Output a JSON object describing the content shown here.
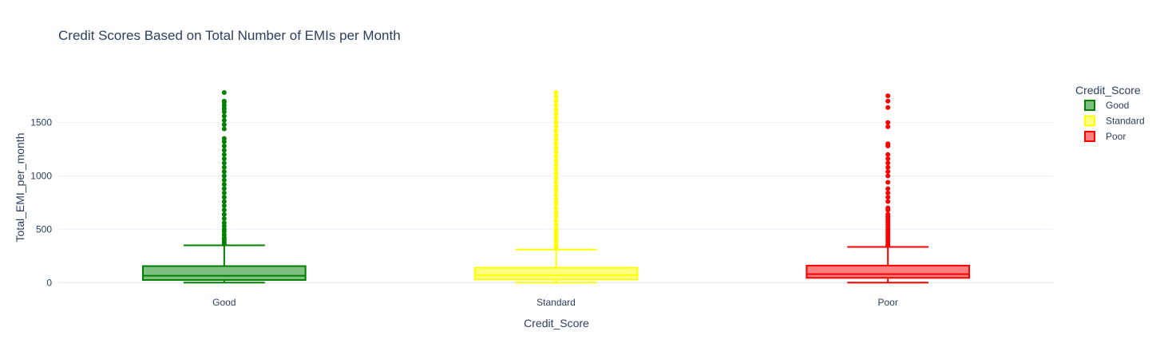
{
  "chart_data": {
    "type": "box",
    "title": "Credit Scores Based on Total Number of EMIs per Month",
    "xlabel": "Credit_Score",
    "ylabel": "Total_EMI_per_month",
    "ylim": [
      -80,
      1900
    ],
    "yticks": [
      0,
      500,
      1000,
      1500
    ],
    "grid": true,
    "legend": {
      "title": "Credit_Score",
      "placement": "top-right"
    },
    "categories": [
      "Good",
      "Standard",
      "Poor"
    ],
    "series": [
      {
        "name": "Good",
        "color": "#008000",
        "fill": "rgba(0,128,0,0.5)",
        "min": 0,
        "q1": 25,
        "median": 65,
        "q3": 155,
        "max": 350,
        "outliers": [
          360,
          380,
          400,
          420,
          450,
          480,
          500,
          530,
          560,
          600,
          640,
          680,
          720,
          760,
          800,
          840,
          880,
          920,
          960,
          1000,
          1040,
          1080,
          1120,
          1160,
          1200,
          1240,
          1280,
          1320,
          1350,
          1440,
          1480,
          1520,
          1560,
          1600,
          1630,
          1660,
          1690,
          1700,
          1780
        ]
      },
      {
        "name": "Standard",
        "color": "#ffff00",
        "fill": "rgba(255,255,0,0.5)",
        "min": 0,
        "q1": 30,
        "median": 70,
        "q3": 140,
        "max": 310,
        "outliers": [
          320,
          350,
          380,
          410,
          440,
          470,
          500,
          540,
          580,
          620,
          660,
          700,
          740,
          780,
          820,
          860,
          900,
          940,
          980,
          1020,
          1060,
          1100,
          1140,
          1180,
          1220,
          1260,
          1300,
          1340,
          1380,
          1420,
          1460,
          1500,
          1540,
          1580,
          1620,
          1660,
          1700,
          1740,
          1780
        ]
      },
      {
        "name": "Poor",
        "color": "#ff0000",
        "fill": "rgba(255,0,0,0.5)",
        "min": 0,
        "q1": 45,
        "median": 80,
        "q3": 160,
        "max": 335,
        "outliers": [
          345,
          360,
          380,
          400,
          420,
          440,
          460,
          480,
          500,
          520,
          540,
          560,
          580,
          600,
          620,
          640,
          680,
          700,
          760,
          800,
          840,
          880,
          940,
          1000,
          1040,
          1080,
          1120,
          1160,
          1200,
          1280,
          1300,
          1460,
          1500,
          1640,
          1700,
          1750
        ]
      }
    ]
  }
}
